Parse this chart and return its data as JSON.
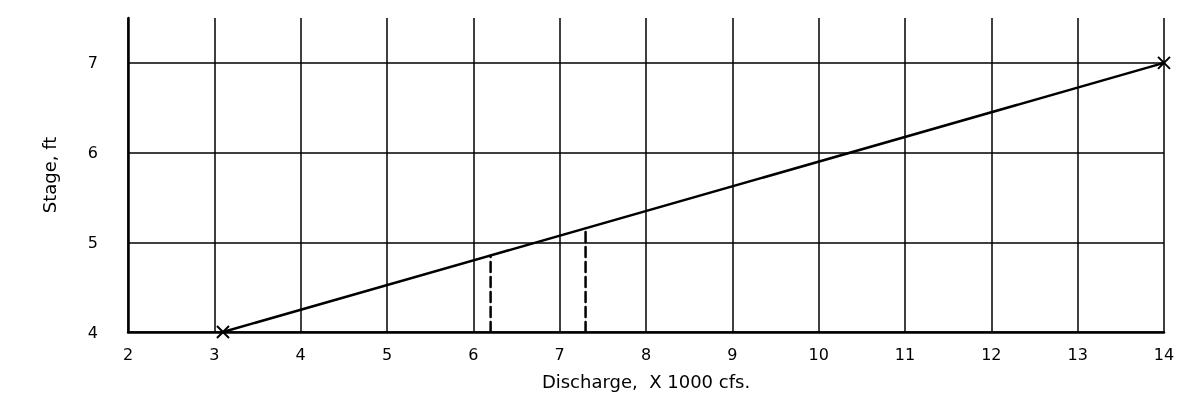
{
  "chart_data": {
    "type": "line",
    "xlabel": "Discharge,  X 1000 cfs.",
    "ylabel": "Stage, ft",
    "xlim": [
      2,
      14
    ],
    "xticks": [
      2,
      3,
      4,
      5,
      6,
      7,
      8,
      9,
      10,
      11,
      12,
      13,
      14
    ],
    "ylim": [
      4,
      7.5
    ],
    "yticks": [
      4,
      5,
      6,
      7
    ],
    "grid": true,
    "series": [
      {
        "x": [
          3.1,
          14
        ],
        "values": [
          4,
          7
        ],
        "color": "#000000",
        "marker": "cross",
        "line_style": "solid"
      },
      {
        "x": [
          6.2,
          6.2
        ],
        "values": [
          4,
          4.85
        ],
        "color": "#000000",
        "marker": "none",
        "line_style": "dashed"
      },
      {
        "x": [
          7.3,
          7.3
        ],
        "values": [
          4,
          5.15
        ],
        "color": "#000000",
        "marker": "none",
        "line_style": "dashed"
      }
    ]
  }
}
